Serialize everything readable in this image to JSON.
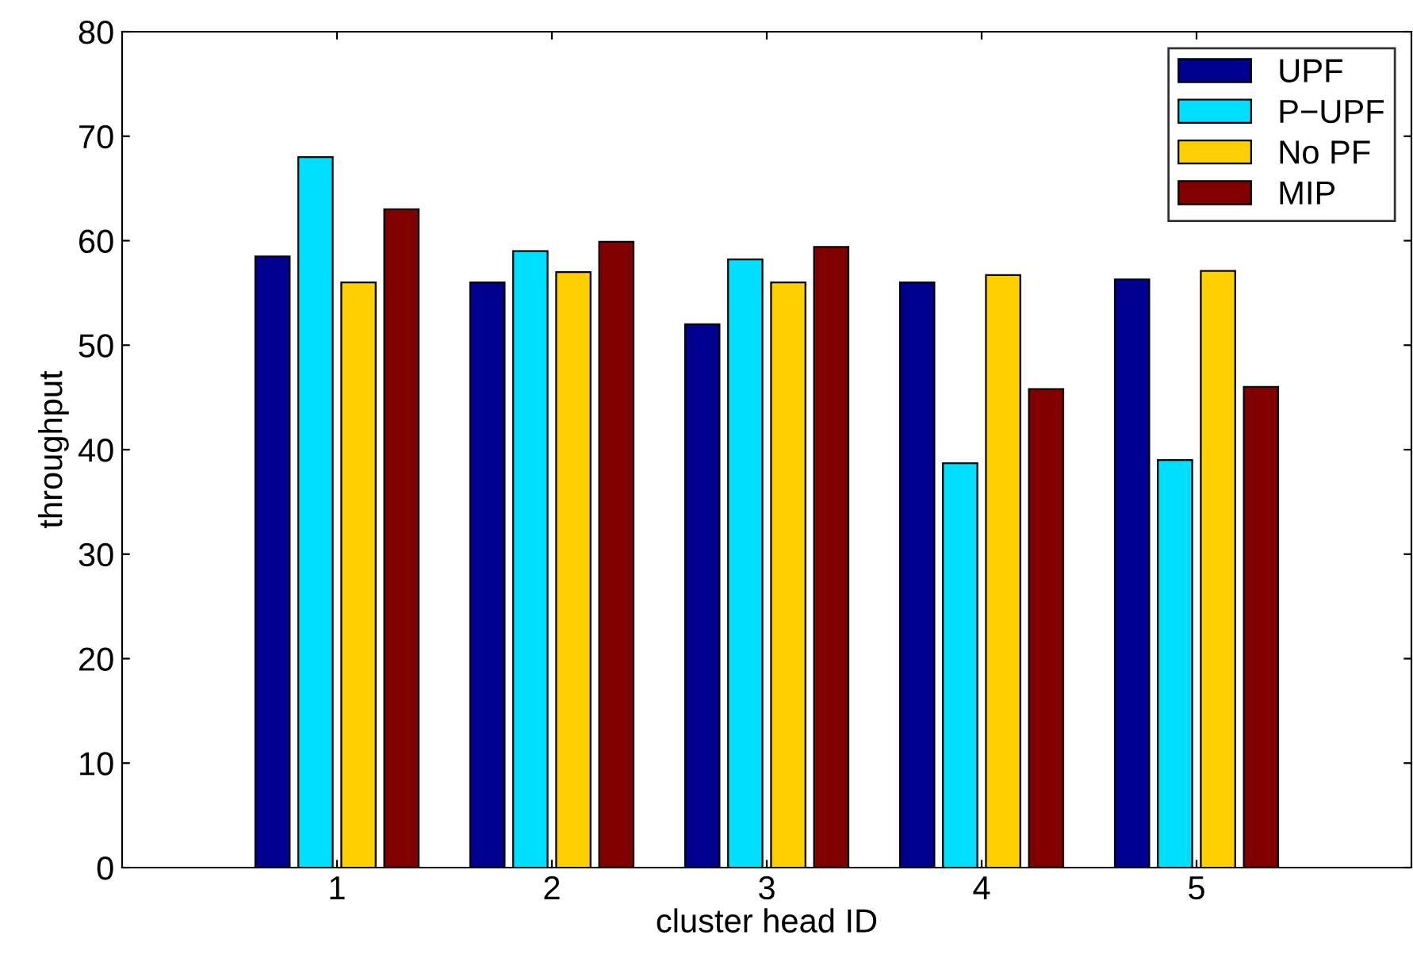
{
  "chart_data": {
    "type": "bar",
    "xlabel": "cluster head ID",
    "ylabel": "throughput",
    "categories": [
      "1",
      "2",
      "3",
      "4",
      "5"
    ],
    "series": [
      {
        "name": "UPF",
        "color": "#00008f",
        "values": [
          58.5,
          56,
          52,
          56,
          56.3
        ]
      },
      {
        "name": "P−UPF",
        "color": "#00dfff",
        "values": [
          68,
          59,
          58.2,
          38.7,
          39
        ]
      },
      {
        "name": "No PF",
        "color": "#ffcf00",
        "values": [
          56,
          57,
          56,
          56.7,
          57.1
        ]
      },
      {
        "name": "MIP",
        "color": "#800000",
        "values": [
          63,
          59.9,
          59.4,
          45.8,
          46
        ]
      }
    ],
    "ylim": [
      0,
      80
    ],
    "yticks": [
      0,
      10,
      20,
      30,
      40,
      50,
      60,
      70,
      80
    ],
    "grid": false,
    "legend": "top right"
  }
}
